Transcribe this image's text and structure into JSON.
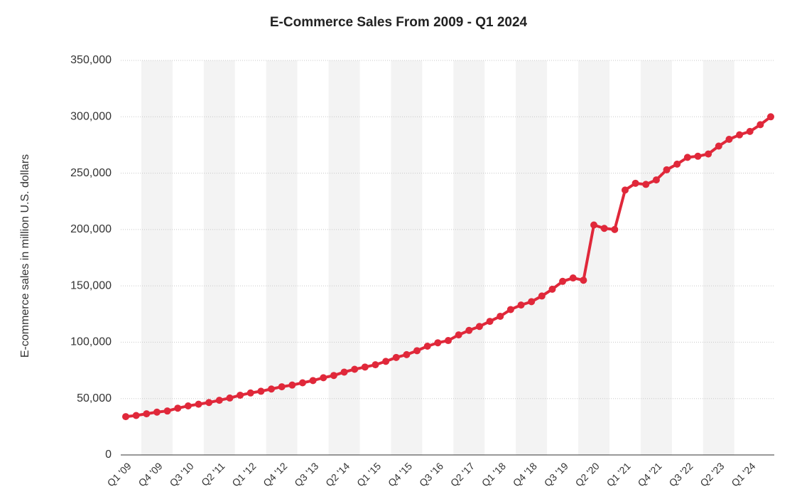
{
  "chart_data": {
    "type": "line",
    "title": "E-Commerce Sales From 2009 - Q1 2024",
    "y_label": "E-commerce sales in million U.S. dollars",
    "categories": [
      "Q1 '09",
      null,
      null,
      "Q4 '09",
      null,
      null,
      "Q3 '10",
      null,
      null,
      "Q2 '11",
      null,
      null,
      "Q1 '12",
      null,
      null,
      "Q4 '12",
      null,
      null,
      "Q3 '13",
      null,
      null,
      "Q2 '14",
      null,
      null,
      "Q1 '15",
      null,
      null,
      "Q4 '15",
      null,
      null,
      "Q3 '16",
      null,
      null,
      "Q2 '17",
      null,
      null,
      "Q1 '18",
      null,
      null,
      "Q4 '18",
      null,
      null,
      "Q3 '19",
      null,
      null,
      "Q2 '20",
      null,
      null,
      "Q1 '21",
      null,
      null,
      "Q4 '21",
      null,
      null,
      "Q3 '22",
      null,
      null,
      "Q2 '23",
      null,
      null,
      "Q1 '24",
      null,
      null
    ],
    "series": [
      {
        "name": "E-commerce sales",
        "color": "#e0283a",
        "values": [
          34000,
          35000,
          36500,
          38000,
          39000,
          41500,
          43500,
          45000,
          46500,
          48500,
          50500,
          53000,
          55000,
          56500,
          58500,
          60500,
          62000,
          64000,
          66000,
          68500,
          70500,
          73500,
          76000,
          78000,
          80000,
          83000,
          86500,
          89000,
          92500,
          96500,
          99500,
          101500,
          106500,
          110500,
          114000,
          118500,
          123000,
          129000,
          133000,
          136000,
          141000,
          147000,
          154000,
          157000,
          155000,
          204000,
          201000,
          200000,
          235000,
          241000,
          240000,
          244000,
          253000,
          258000,
          264000,
          265000,
          267000,
          274000,
          280000,
          284000,
          287000,
          293000,
          300000
        ]
      }
    ],
    "ylim": [
      0,
      350000
    ],
    "yticks": [
      0,
      {
        "value": 50000,
        "label": "50,000"
      },
      {
        "value": 100000,
        "label": "100,000"
      },
      {
        "value": 150000,
        "label": "150,000"
      },
      {
        "value": 200000,
        "label": "200,000"
      },
      {
        "value": 250000,
        "label": "250,000"
      },
      {
        "value": 300000,
        "label": "300,000"
      },
      {
        "value": 350000,
        "label": "350,000"
      }
    ],
    "grid": true
  }
}
